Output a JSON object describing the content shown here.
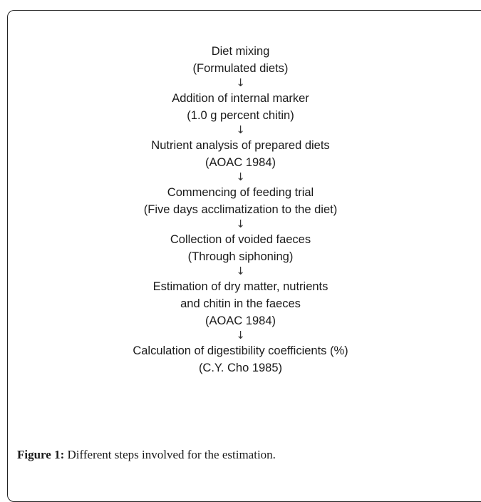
{
  "arrow_symbol": "↓",
  "steps": [
    {
      "lines": [
        "Diet mixing",
        "(Formulated diets)"
      ]
    },
    {
      "lines": [
        "Addition of internal marker",
        "(1.0 g percent chitin)"
      ]
    },
    {
      "lines": [
        "Nutrient analysis of prepared diets",
        "(AOAC 1984)"
      ]
    },
    {
      "lines": [
        "Commencing of feeding trial",
        "(Five days acclimatization to the diet)"
      ]
    },
    {
      "lines": [
        "Collection of voided faeces",
        "(Through siphoning)"
      ]
    },
    {
      "lines": [
        "Estimation of dry matter, nutrients",
        "and chitin in the faeces",
        "(AOAC 1984)"
      ]
    },
    {
      "lines": [
        "Calculation of digestibility coefficients (%)",
        "(C.Y. Cho 1985)"
      ]
    }
  ],
  "caption": {
    "label": "Figure 1:",
    "text": " Different steps involved for the estimation."
  }
}
